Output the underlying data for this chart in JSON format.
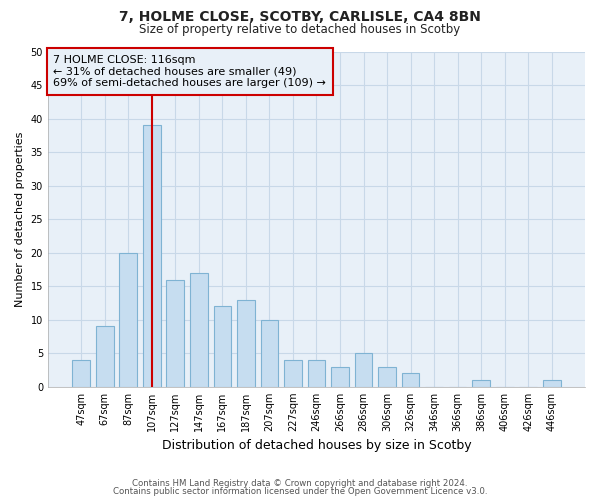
{
  "title": "7, HOLME CLOSE, SCOTBY, CARLISLE, CA4 8BN",
  "subtitle": "Size of property relative to detached houses in Scotby",
  "xlabel": "Distribution of detached houses by size in Scotby",
  "ylabel": "Number of detached properties",
  "bar_labels": [
    "47sqm",
    "67sqm",
    "87sqm",
    "107sqm",
    "127sqm",
    "147sqm",
    "167sqm",
    "187sqm",
    "207sqm",
    "227sqm",
    "246sqm",
    "266sqm",
    "286sqm",
    "306sqm",
    "326sqm",
    "346sqm",
    "366sqm",
    "386sqm",
    "406sqm",
    "426sqm",
    "446sqm"
  ],
  "bar_values": [
    4,
    9,
    20,
    39,
    16,
    17,
    12,
    13,
    10,
    4,
    4,
    3,
    5,
    3,
    2,
    0,
    0,
    1,
    0,
    0,
    1
  ],
  "bar_color": "#c6ddf0",
  "bar_edge_color": "#7fb3d3",
  "vline_x": 3,
  "vline_color": "#cc0000",
  "annotation_text": "7 HOLME CLOSE: 116sqm\n← 31% of detached houses are smaller (49)\n69% of semi-detached houses are larger (109) →",
  "annotation_box_edge": "#cc0000",
  "ylim": [
    0,
    50
  ],
  "yticks": [
    0,
    5,
    10,
    15,
    20,
    25,
    30,
    35,
    40,
    45,
    50
  ],
  "grid_color": "#c8d8e8",
  "footer1": "Contains HM Land Registry data © Crown copyright and database right 2024.",
  "footer2": "Contains public sector information licensed under the Open Government Licence v3.0.",
  "background_color": "#ffffff",
  "plot_bg_color": "#e8f0f8"
}
